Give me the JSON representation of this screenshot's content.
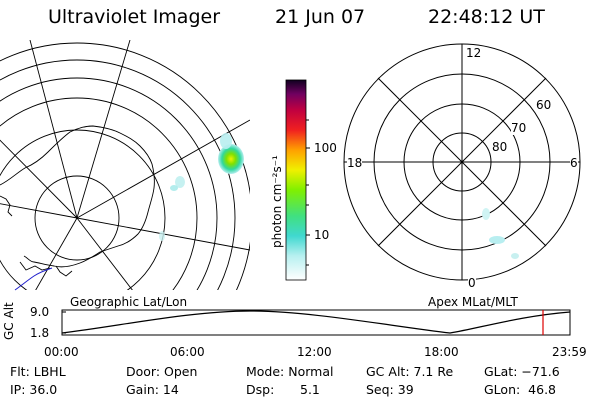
{
  "header": {
    "instrument": "Ultraviolet Imager",
    "date": "21 Jun 07",
    "time": "22:48:12 UT"
  },
  "colorbar": {
    "unit": "photon cm⁻²s⁻¹",
    "tick_labels": [
      "100",
      "10"
    ],
    "scale": "log"
  },
  "polar": {
    "mlt_labels": [
      "12",
      "18",
      "6",
      "0"
    ],
    "mlat_labels": [
      "60",
      "70",
      "80"
    ]
  },
  "panel_labels": {
    "left": "Geographic Lat/Lon",
    "right": "Apex MLat/MLT"
  },
  "orbit": {
    "y_axis_label": "GC Alt",
    "y_ticks": [
      "9.0",
      "1.8"
    ],
    "x_ticks": [
      "00:00",
      "06:00",
      "12:00",
      "18:00",
      "23:59"
    ],
    "marker_color": "#dd0000"
  },
  "info": {
    "filter": "Flt: LBHL",
    "ip": "IP: 36.0",
    "door": "Door: Open",
    "gain": "Gain: 14",
    "mode": "Mode: Normal",
    "dsp_label": "Dsp:",
    "dsp_value": "5.1",
    "gc_alt": "GC Alt: 7.1 Re",
    "seq": "Seq: 39",
    "glat": "GLat: −71.6",
    "glon": "GLon:  46.8"
  }
}
